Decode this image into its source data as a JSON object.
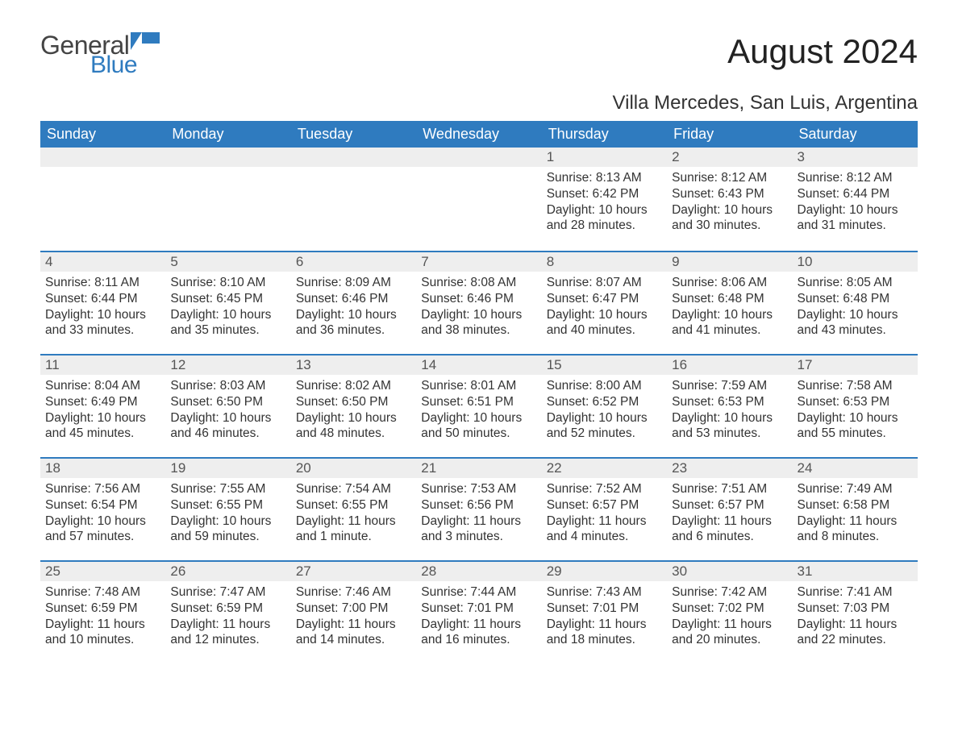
{
  "brand": {
    "part1": "General",
    "part2": "Blue",
    "flag_color": "#2f7bbf"
  },
  "title": "August 2024",
  "subtitle": "Villa Mercedes, San Luis, Argentina",
  "colors": {
    "header_bg": "#2f7bbf",
    "header_text": "#ffffff",
    "daynum_bg": "#eeeeee",
    "row_border": "#2f7bbf",
    "body_text": "#333333",
    "page_bg": "#ffffff"
  },
  "typography": {
    "title_fontsize": 42,
    "subtitle_fontsize": 24,
    "header_fontsize": 18,
    "daynum_fontsize": 17,
    "body_fontsize": 15.5
  },
  "weekdays": [
    "Sunday",
    "Monday",
    "Tuesday",
    "Wednesday",
    "Thursday",
    "Friday",
    "Saturday"
  ],
  "weeks": [
    [
      null,
      null,
      null,
      null,
      {
        "n": "1",
        "sunrise": "8:13 AM",
        "sunset": "6:42 PM",
        "daylight": "10 hours and 28 minutes."
      },
      {
        "n": "2",
        "sunrise": "8:12 AM",
        "sunset": "6:43 PM",
        "daylight": "10 hours and 30 minutes."
      },
      {
        "n": "3",
        "sunrise": "8:12 AM",
        "sunset": "6:44 PM",
        "daylight": "10 hours and 31 minutes."
      }
    ],
    [
      {
        "n": "4",
        "sunrise": "8:11 AM",
        "sunset": "6:44 PM",
        "daylight": "10 hours and 33 minutes."
      },
      {
        "n": "5",
        "sunrise": "8:10 AM",
        "sunset": "6:45 PM",
        "daylight": "10 hours and 35 minutes."
      },
      {
        "n": "6",
        "sunrise": "8:09 AM",
        "sunset": "6:46 PM",
        "daylight": "10 hours and 36 minutes."
      },
      {
        "n": "7",
        "sunrise": "8:08 AM",
        "sunset": "6:46 PM",
        "daylight": "10 hours and 38 minutes."
      },
      {
        "n": "8",
        "sunrise": "8:07 AM",
        "sunset": "6:47 PM",
        "daylight": "10 hours and 40 minutes."
      },
      {
        "n": "9",
        "sunrise": "8:06 AM",
        "sunset": "6:48 PM",
        "daylight": "10 hours and 41 minutes."
      },
      {
        "n": "10",
        "sunrise": "8:05 AM",
        "sunset": "6:48 PM",
        "daylight": "10 hours and 43 minutes."
      }
    ],
    [
      {
        "n": "11",
        "sunrise": "8:04 AM",
        "sunset": "6:49 PM",
        "daylight": "10 hours and 45 minutes."
      },
      {
        "n": "12",
        "sunrise": "8:03 AM",
        "sunset": "6:50 PM",
        "daylight": "10 hours and 46 minutes."
      },
      {
        "n": "13",
        "sunrise": "8:02 AM",
        "sunset": "6:50 PM",
        "daylight": "10 hours and 48 minutes."
      },
      {
        "n": "14",
        "sunrise": "8:01 AM",
        "sunset": "6:51 PM",
        "daylight": "10 hours and 50 minutes."
      },
      {
        "n": "15",
        "sunrise": "8:00 AM",
        "sunset": "6:52 PM",
        "daylight": "10 hours and 52 minutes."
      },
      {
        "n": "16",
        "sunrise": "7:59 AM",
        "sunset": "6:53 PM",
        "daylight": "10 hours and 53 minutes."
      },
      {
        "n": "17",
        "sunrise": "7:58 AM",
        "sunset": "6:53 PM",
        "daylight": "10 hours and 55 minutes."
      }
    ],
    [
      {
        "n": "18",
        "sunrise": "7:56 AM",
        "sunset": "6:54 PM",
        "daylight": "10 hours and 57 minutes."
      },
      {
        "n": "19",
        "sunrise": "7:55 AM",
        "sunset": "6:55 PM",
        "daylight": "10 hours and 59 minutes."
      },
      {
        "n": "20",
        "sunrise": "7:54 AM",
        "sunset": "6:55 PM",
        "daylight": "11 hours and 1 minute."
      },
      {
        "n": "21",
        "sunrise": "7:53 AM",
        "sunset": "6:56 PM",
        "daylight": "11 hours and 3 minutes."
      },
      {
        "n": "22",
        "sunrise": "7:52 AM",
        "sunset": "6:57 PM",
        "daylight": "11 hours and 4 minutes."
      },
      {
        "n": "23",
        "sunrise": "7:51 AM",
        "sunset": "6:57 PM",
        "daylight": "11 hours and 6 minutes."
      },
      {
        "n": "24",
        "sunrise": "7:49 AM",
        "sunset": "6:58 PM",
        "daylight": "11 hours and 8 minutes."
      }
    ],
    [
      {
        "n": "25",
        "sunrise": "7:48 AM",
        "sunset": "6:59 PM",
        "daylight": "11 hours and 10 minutes."
      },
      {
        "n": "26",
        "sunrise": "7:47 AM",
        "sunset": "6:59 PM",
        "daylight": "11 hours and 12 minutes."
      },
      {
        "n": "27",
        "sunrise": "7:46 AM",
        "sunset": "7:00 PM",
        "daylight": "11 hours and 14 minutes."
      },
      {
        "n": "28",
        "sunrise": "7:44 AM",
        "sunset": "7:01 PM",
        "daylight": "11 hours and 16 minutes."
      },
      {
        "n": "29",
        "sunrise": "7:43 AM",
        "sunset": "7:01 PM",
        "daylight": "11 hours and 18 minutes."
      },
      {
        "n": "30",
        "sunrise": "7:42 AM",
        "sunset": "7:02 PM",
        "daylight": "11 hours and 20 minutes."
      },
      {
        "n": "31",
        "sunrise": "7:41 AM",
        "sunset": "7:03 PM",
        "daylight": "11 hours and 22 minutes."
      }
    ]
  ],
  "labels": {
    "sunrise": "Sunrise: ",
    "sunset": "Sunset: ",
    "daylight": "Daylight: "
  }
}
